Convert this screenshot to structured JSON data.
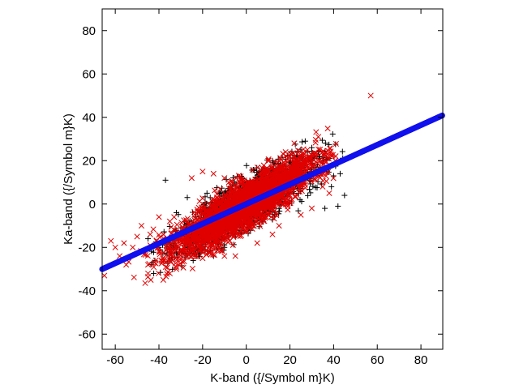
{
  "chart_data": {
    "type": "scatter",
    "title": "",
    "xlabel": "K-band ({/Symbol m}K)",
    "ylabel": "Ka-band ({/Symbol m}K)",
    "xlim": [
      -66,
      90
    ],
    "ylim": [
      -67,
      90
    ],
    "xticks": [
      -60,
      -40,
      -20,
      0,
      20,
      40,
      60,
      80
    ],
    "yticks": [
      -60,
      -40,
      -20,
      0,
      20,
      40,
      60,
      80
    ],
    "grid": false,
    "legend": "none",
    "colors": {
      "black_series": "#000000",
      "red_series": "#e00000",
      "fit_line": "#1010ee"
    },
    "series": [
      {
        "marker": "plus",
        "color": "#000000",
        "cloud": {
          "center": [
            0,
            0
          ],
          "x_std": 16,
          "slope": 0.6,
          "y_scatter": 5.5,
          "x_range": [
            -45,
            45
          ]
        },
        "points": [
          [
            -37,
            11
          ],
          [
            27,
            29
          ],
          [
            33,
            24
          ],
          [
            42,
            -1
          ],
          [
            45,
            4
          ],
          [
            35,
            19
          ],
          [
            38,
            21
          ],
          [
            30,
            26
          ],
          [
            28,
            24
          ],
          [
            40,
            13
          ],
          [
            36,
            -2
          ],
          [
            39,
            8
          ],
          [
            32,
            17
          ],
          [
            -27,
            3
          ],
          [
            -15,
            -24
          ],
          [
            -23,
            -6
          ],
          [
            -30,
            -11
          ],
          [
            -12,
            -18
          ],
          [
            25,
            25
          ],
          [
            23,
            22
          ],
          [
            20,
            18
          ],
          [
            15,
            15
          ],
          [
            -20,
            -9
          ],
          [
            -45,
            -16
          ],
          [
            -40,
            -20
          ],
          [
            -35,
            -22
          ],
          [
            -18,
            5
          ],
          [
            -10,
            -20
          ],
          [
            12,
            20
          ],
          [
            8,
            14
          ],
          [
            5,
            12
          ],
          [
            -5,
            -15
          ],
          [
            18,
            8
          ],
          [
            22,
            14
          ],
          [
            26,
            20
          ],
          [
            31,
            21
          ],
          [
            34,
            16
          ],
          [
            37,
            15
          ],
          [
            41,
            18
          ],
          [
            43,
            14
          ],
          [
            29,
            11
          ],
          [
            24,
            5
          ],
          [
            -25,
            -12
          ],
          [
            -32,
            -4
          ],
          [
            -28,
            -19
          ],
          [
            -22,
            -14
          ]
        ]
      },
      {
        "marker": "x",
        "color": "#e00000",
        "cloud": {
          "center": [
            0,
            0
          ],
          "x_std": 17,
          "slope": 0.6,
          "y_scatter": 5.5,
          "x_range": [
            -65,
            42
          ]
        },
        "points": [
          [
            57,
            50
          ],
          [
            -62,
            -17
          ],
          [
            -65,
            -33
          ],
          [
            -55,
            -28
          ],
          [
            -45,
            -32
          ],
          [
            -45,
            -28
          ],
          [
            -42,
            -27
          ],
          [
            -38,
            -35
          ],
          [
            -35,
            -32
          ],
          [
            -32,
            -30
          ],
          [
            -28,
            -18
          ],
          [
            -60,
            -20
          ],
          [
            -50,
            -15
          ],
          [
            -48,
            -10
          ],
          [
            -52,
            -20
          ],
          [
            -40,
            -22
          ],
          [
            -30,
            -25
          ],
          [
            -20,
            -25
          ],
          [
            -10,
            -24
          ],
          [
            33,
            31
          ],
          [
            38,
            5
          ],
          [
            35,
            8
          ],
          [
            30,
            -2
          ],
          [
            25,
            -5
          ],
          [
            20,
            22
          ],
          [
            -5,
            -24
          ],
          [
            -25,
            12
          ],
          [
            -20,
            15
          ],
          [
            -15,
            14
          ],
          [
            -10,
            12
          ],
          [
            10,
            20
          ],
          [
            22,
            28
          ],
          [
            15,
            -10
          ],
          [
            -35,
            -8
          ],
          [
            -40,
            -6
          ],
          [
            -44,
            -14
          ],
          [
            28,
            25
          ],
          [
            18,
            24
          ],
          [
            -8,
            10
          ],
          [
            5,
            -18
          ],
          [
            12,
            -14
          ],
          [
            -58,
            -24
          ],
          [
            -56,
            -18
          ]
        ]
      }
    ],
    "fit_line": {
      "color": "#1010ee",
      "marker": "filled-circle",
      "x_from": -66,
      "x_to": 90,
      "slope": 0.455,
      "intercept": 0
    }
  }
}
